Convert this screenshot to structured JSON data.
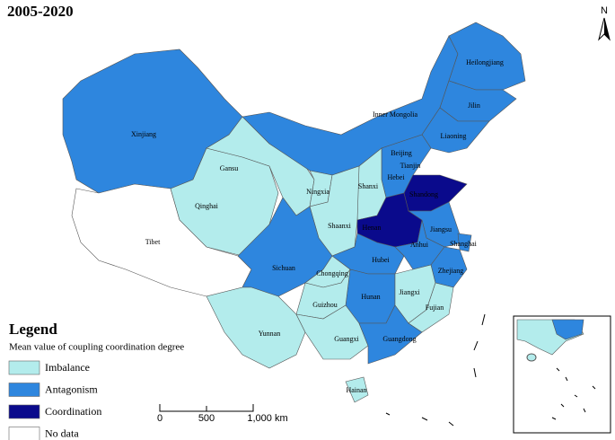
{
  "title": "2005-2020",
  "north": "N",
  "legend": {
    "title": "Legend",
    "subtitle": "Mean value of coupling coordination degree",
    "items": [
      {
        "label": "Imbalance",
        "color": "#b3ecec"
      },
      {
        "label": "Antagonism",
        "color": "#2e86de"
      },
      {
        "label": "Coordination",
        "color": "#0a0a8c"
      },
      {
        "label": "No data",
        "color": "#ffffff"
      }
    ]
  },
  "scale_bar": {
    "labels": [
      "0",
      "500",
      "1,000 km"
    ]
  },
  "regions": [
    {
      "name": "Xinjiang",
      "color": "#2e86de"
    },
    {
      "name": "Tibet",
      "color": "#ffffff"
    },
    {
      "name": "Qinghai",
      "color": "#b3ecec"
    },
    {
      "name": "Gansu",
      "color": "#b3ecec"
    },
    {
      "name": "Inner Mongolia",
      "color": "#2e86de"
    },
    {
      "name": "Heilongjiang",
      "color": "#2e86de"
    },
    {
      "name": "Jilin",
      "color": "#2e86de"
    },
    {
      "name": "Liaoning",
      "color": "#2e86de"
    },
    {
      "name": "Beijing",
      "color": "#b3ecec"
    },
    {
      "name": "Tianjin",
      "color": "#b3ecec"
    },
    {
      "name": "Hebei",
      "color": "#2e86de"
    },
    {
      "name": "Shanxi",
      "color": "#b3ecec"
    },
    {
      "name": "Ningxia",
      "color": "#b3ecec"
    },
    {
      "name": "Shaanxi",
      "color": "#b3ecec"
    },
    {
      "name": "Shandong",
      "color": "#0a0a8c"
    },
    {
      "name": "Henan",
      "color": "#0a0a8c"
    },
    {
      "name": "Jiangsu",
      "color": "#2e86de"
    },
    {
      "name": "Anhui",
      "color": "#2e86de"
    },
    {
      "name": "Shanghai",
      "color": "#2e86de"
    },
    {
      "name": "Zhejiang",
      "color": "#2e86de"
    },
    {
      "name": "Hubei",
      "color": "#2e86de"
    },
    {
      "name": "Sichuan",
      "color": "#2e86de"
    },
    {
      "name": "Chongqing",
      "color": "#b3ecec"
    },
    {
      "name": "Hunan",
      "color": "#2e86de"
    },
    {
      "name": "Jiangxi",
      "color": "#b3ecec"
    },
    {
      "name": "Fujian",
      "color": "#b3ecec"
    },
    {
      "name": "Guizhou",
      "color": "#b3ecec"
    },
    {
      "name": "Yunnan",
      "color": "#b3ecec"
    },
    {
      "name": "Guangxi",
      "color": "#b3ecec"
    },
    {
      "name": "Guangdong",
      "color": "#2e86de"
    },
    {
      "name": "Hainan",
      "color": "#b3ecec"
    }
  ]
}
